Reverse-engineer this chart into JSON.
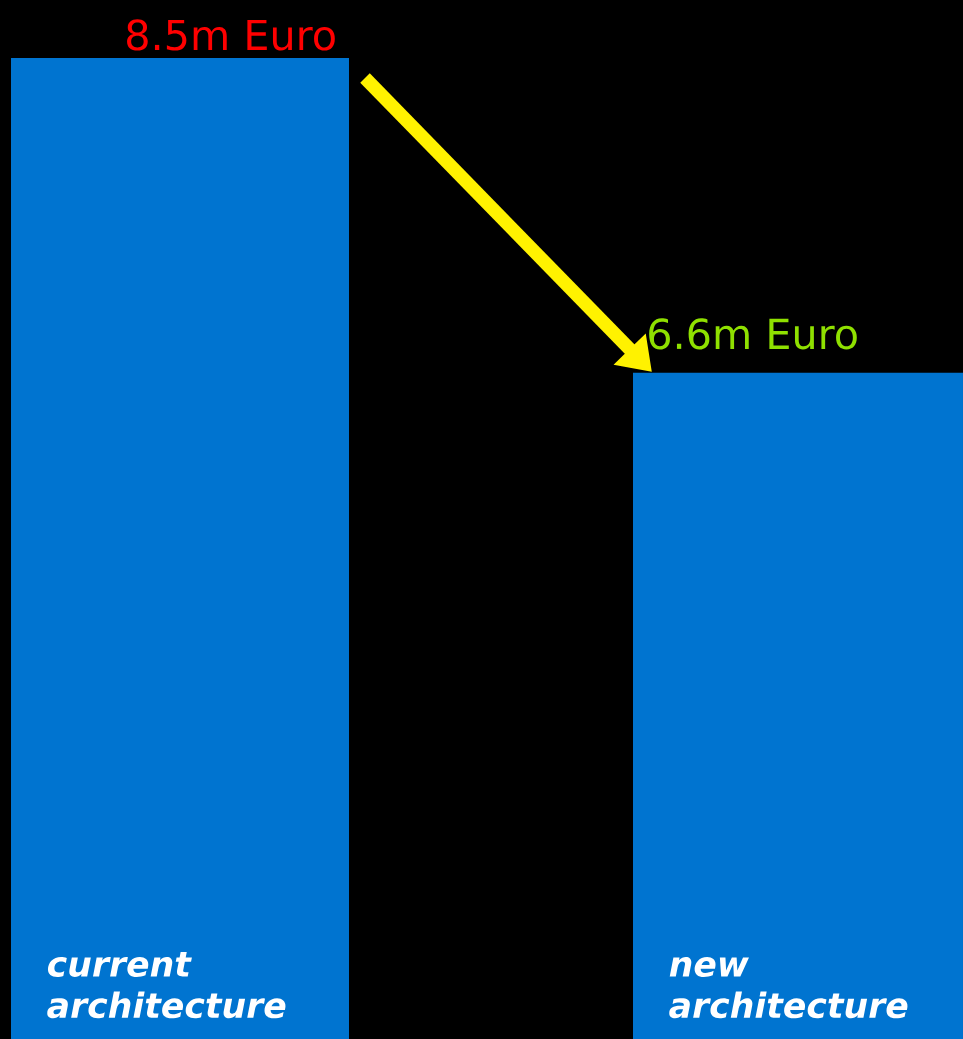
{
  "chart_data": {
    "type": "bar",
    "categories": [
      "current architecture",
      "new architecture"
    ],
    "values": [
      8.5,
      6.6
    ],
    "value_labels": [
      "8.5m Euro",
      "6.6m Euro"
    ],
    "color": "#0074d0",
    "ylim": [
      2.58,
      8.85
    ],
    "tick_labels": "x"
  }
}
